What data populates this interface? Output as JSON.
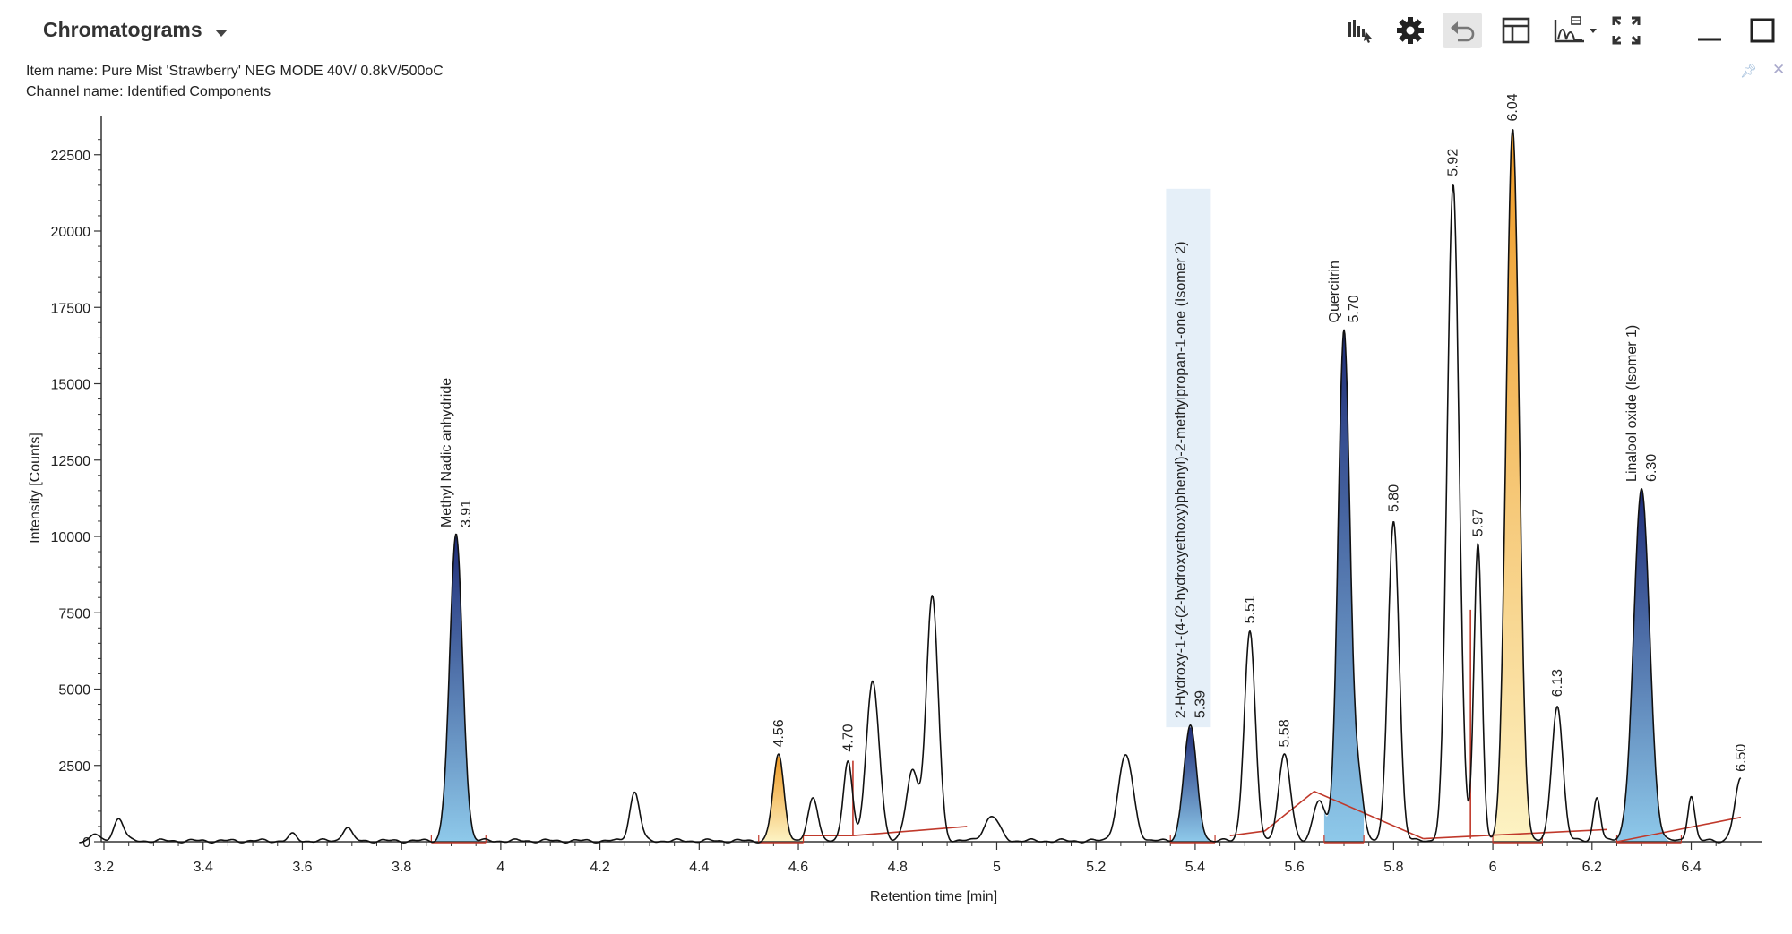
{
  "header": {
    "title": "Chromatograms",
    "toolbar": [
      {
        "name": "peak-select-icon"
      },
      {
        "name": "settings-icon"
      },
      {
        "name": "undo-icon"
      },
      {
        "name": "table-layout-icon"
      },
      {
        "name": "chart-view-dropdown-icon"
      },
      {
        "name": "fullscreen-icon"
      },
      {
        "name": "minimize-icon"
      },
      {
        "name": "maximize-icon"
      }
    ]
  },
  "info": {
    "item_name": "Item name: Pure Mist 'Strawberry' NEG MODE 40V/ 0.8kV/500oC",
    "channel_name": "Channel name: Identified Components"
  },
  "colors": {
    "trace": "#111111",
    "baseline": "#c0392b",
    "blue_fill_top": "#1f2d78",
    "blue_fill_bottom": "#8ec9ea",
    "orange_fill_top": "#ee9a25",
    "orange_fill_bottom": "#fdf3c4",
    "highlight": "#e5eff8"
  },
  "chart_data": {
    "type": "line",
    "xlabel": "Retention time [min]",
    "ylabel": "Intensity [Counts]",
    "xlim": [
      3.15,
      6.5
    ],
    "ylim": [
      0,
      23500
    ],
    "x_ticks": [
      "3.2",
      "3.4",
      "3.6",
      "3.8",
      "4",
      "4.2",
      "4.4",
      "4.6",
      "4.8",
      "5",
      "5.2",
      "5.4",
      "5.6",
      "5.8",
      "6",
      "6.2",
      "6.4"
    ],
    "x_tick_values": [
      3.2,
      3.4,
      3.6,
      3.8,
      4.0,
      4.2,
      4.4,
      4.6,
      4.8,
      5.0,
      5.2,
      5.4,
      5.6,
      5.8,
      6.0,
      6.2,
      6.4
    ],
    "y_ticks": [
      "0",
      "2500",
      "5000",
      "7500",
      "10000",
      "12500",
      "15000",
      "17500",
      "20000",
      "22500"
    ],
    "y_tick_values": [
      0,
      2500,
      5000,
      7500,
      10000,
      12500,
      15000,
      17500,
      20000,
      22500
    ],
    "peaks": [
      {
        "rt": 3.18,
        "height": 220,
        "width": 0.008
      },
      {
        "rt": 3.23,
        "height": 750,
        "width": 0.01
      },
      {
        "rt": 3.58,
        "height": 200,
        "width": 0.008
      },
      {
        "rt": 3.69,
        "height": 450,
        "width": 0.009
      },
      {
        "rt": 3.91,
        "height": 10000,
        "width": 0.013
      },
      {
        "rt": 4.27,
        "height": 1600,
        "width": 0.01
      },
      {
        "rt": 4.56,
        "height": 2800,
        "width": 0.011
      },
      {
        "rt": 4.63,
        "height": 1400,
        "width": 0.01
      },
      {
        "rt": 4.7,
        "height": 2650,
        "width": 0.009
      },
      {
        "rt": 4.75,
        "height": 5200,
        "width": 0.013
      },
      {
        "rt": 4.83,
        "height": 2300,
        "width": 0.012
      },
      {
        "rt": 4.87,
        "height": 8000,
        "width": 0.012
      },
      {
        "rt": 4.99,
        "height": 800,
        "width": 0.015
      },
      {
        "rt": 5.26,
        "height": 2800,
        "width": 0.015
      },
      {
        "rt": 5.39,
        "height": 3750,
        "width": 0.013
      },
      {
        "rt": 5.51,
        "height": 6850,
        "width": 0.011
      },
      {
        "rt": 5.58,
        "height": 2800,
        "width": 0.012
      },
      {
        "rt": 5.65,
        "height": 1300,
        "width": 0.012
      },
      {
        "rt": 5.7,
        "height": 16700,
        "width": 0.012
      },
      {
        "rt": 5.73,
        "height": 1800,
        "width": 0.01
      },
      {
        "rt": 5.8,
        "height": 10500,
        "width": 0.011
      },
      {
        "rt": 5.92,
        "height": 21500,
        "width": 0.012
      },
      {
        "rt": 5.97,
        "height": 9700,
        "width": 0.008
      },
      {
        "rt": 6.04,
        "height": 23300,
        "width": 0.013
      },
      {
        "rt": 6.13,
        "height": 4450,
        "width": 0.011
      },
      {
        "rt": 6.21,
        "height": 1450,
        "width": 0.007
      },
      {
        "rt": 6.3,
        "height": 11500,
        "width": 0.016
      },
      {
        "rt": 6.4,
        "height": 1500,
        "width": 0.007
      },
      {
        "rt": 6.5,
        "height": 2000,
        "width": 0.012
      }
    ],
    "filled_peaks": [
      {
        "rt": 3.91,
        "from": 3.86,
        "to": 3.97,
        "color": "blue"
      },
      {
        "rt": 4.56,
        "from": 4.52,
        "to": 4.61,
        "color": "orange"
      },
      {
        "rt": 5.39,
        "from": 5.35,
        "to": 5.44,
        "color": "blue"
      },
      {
        "rt": 5.7,
        "from": 5.66,
        "to": 5.74,
        "color": "blue"
      },
      {
        "rt": 6.04,
        "from": 6.0,
        "to": 6.1,
        "color": "orange"
      },
      {
        "rt": 6.3,
        "from": 6.25,
        "to": 6.38,
        "color": "blue"
      }
    ],
    "baselines": [
      {
        "x1": 4.61,
        "y1": 200,
        "x2": 4.71,
        "y2": 200
      },
      {
        "x1": 4.71,
        "y1": 200,
        "x2": 4.94,
        "y2": 500
      },
      {
        "x1": 4.71,
        "y1": 200,
        "x2": 4.71,
        "y2": 2650
      },
      {
        "x1": 5.47,
        "y1": 200,
        "x2": 5.54,
        "y2": 350
      },
      {
        "x1": 5.54,
        "y1": 350,
        "x2": 5.64,
        "y2": 1650
      },
      {
        "x1": 5.64,
        "y1": 1650,
        "x2": 5.86,
        "y2": 100
      },
      {
        "x1": 5.86,
        "y1": 100,
        "x2": 6.23,
        "y2": 400
      },
      {
        "x1": 5.955,
        "y1": 100,
        "x2": 5.955,
        "y2": 7600
      },
      {
        "x1": 6.25,
        "y1": 0,
        "x2": 6.5,
        "y2": 800
      }
    ],
    "labels": [
      {
        "rt": 3.91,
        "height": 10000,
        "lines": [
          "Methyl Nadic anhydride",
          "3.91"
        ]
      },
      {
        "rt": 4.56,
        "height": 2800,
        "lines": [
          "4.56"
        ]
      },
      {
        "rt": 4.7,
        "height": 2650,
        "lines": [
          "4.70"
        ]
      },
      {
        "rt": 5.39,
        "height": 3750,
        "lines": [
          "2-Hydroxy-1-(4-(2-hydroxyethoxy)phenyl)-2-methylpropan-1-one (Isomer 2)",
          "5.39"
        ],
        "highlight": true
      },
      {
        "rt": 5.51,
        "height": 6850,
        "lines": [
          "5.51"
        ]
      },
      {
        "rt": 5.58,
        "height": 2800,
        "lines": [
          "5.58"
        ]
      },
      {
        "rt": 5.7,
        "height": 16700,
        "lines": [
          "Quercitrin",
          "5.70"
        ]
      },
      {
        "rt": 5.8,
        "height": 10500,
        "lines": [
          "5.80"
        ]
      },
      {
        "rt": 5.92,
        "height": 21500,
        "lines": [
          "5.92"
        ]
      },
      {
        "rt": 5.97,
        "height": 9700,
        "lines": [
          "5.97"
        ]
      },
      {
        "rt": 6.04,
        "height": 23300,
        "lines": [
          "6.04"
        ]
      },
      {
        "rt": 6.13,
        "height": 4450,
        "lines": [
          "6.13"
        ]
      },
      {
        "rt": 6.3,
        "height": 11500,
        "lines": [
          "Linalool oxide (Isomer 1)",
          "6.30"
        ]
      },
      {
        "rt": 6.5,
        "height": 2000,
        "lines": [
          "6.50"
        ]
      }
    ]
  }
}
